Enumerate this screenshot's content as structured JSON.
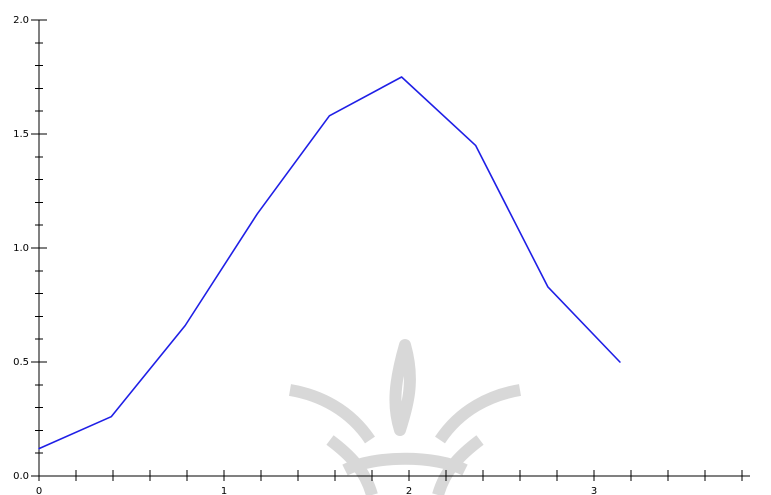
{
  "chart_data": {
    "type": "line",
    "title": "",
    "xlabel": "",
    "ylabel": "",
    "xlim": [
      0,
      3.9
    ],
    "ylim": [
      0,
      2.0
    ],
    "x_ticks": [
      {
        "value": 0,
        "label": "0"
      },
      {
        "value": 1,
        "label": "1"
      },
      {
        "value": 2,
        "label": "2"
      },
      {
        "value": 3,
        "label": "3"
      }
    ],
    "x_minor_step": 0.2,
    "y_ticks": [
      {
        "value": 0.0,
        "label": "0.0"
      },
      {
        "value": 0.5,
        "label": "0.5"
      },
      {
        "value": 1.0,
        "label": "1.0"
      },
      {
        "value": 1.5,
        "label": "1.5"
      },
      {
        "value": 2.0,
        "label": "2.0"
      }
    ],
    "y_minor_step": 0.1,
    "grid": false,
    "series": [
      {
        "color": "#1f1fe6",
        "x": [
          0.0,
          0.39,
          0.79,
          1.18,
          1.57,
          1.96,
          2.36,
          2.75,
          3.14
        ],
        "y": [
          0.12,
          0.26,
          0.66,
          1.15,
          1.58,
          1.75,
          1.45,
          0.83,
          0.5
        ]
      }
    ]
  }
}
